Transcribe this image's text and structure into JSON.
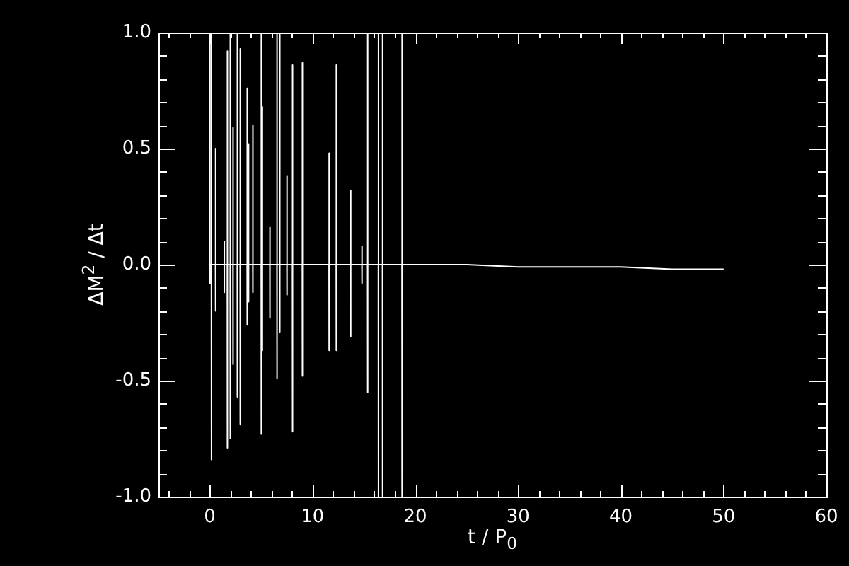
{
  "chart_data": {
    "type": "line",
    "xlabel": "t / P$_{0}$",
    "ylabel": "ΔM$^{2}$ / Δt",
    "xlim": [
      -5,
      60
    ],
    "xticks": [
      {
        "value": -4,
        "label": null
      },
      {
        "value": -2,
        "label": null
      },
      0,
      {
        "value": 2,
        "label": null
      },
      {
        "value": 4,
        "label": null
      },
      {
        "value": 6,
        "label": null
      },
      {
        "value": 8,
        "label": null
      },
      10,
      {
        "value": 12,
        "label": null
      },
      {
        "value": 14,
        "label": null
      },
      {
        "value": 16,
        "label": null
      },
      {
        "value": 18,
        "label": null
      },
      20,
      {
        "value": 22,
        "label": null
      },
      {
        "value": 24,
        "label": null
      },
      {
        "value": 26,
        "label": null
      },
      {
        "value": 28,
        "label": null
      },
      30,
      {
        "value": 32,
        "label": null
      },
      {
        "value": 34,
        "label": null
      },
      {
        "value": 36,
        "label": null
      },
      {
        "value": 38,
        "label": null
      },
      40,
      {
        "value": 42,
        "label": null
      },
      {
        "value": 44,
        "label": null
      },
      {
        "value": 46,
        "label": null
      },
      {
        "value": 48,
        "label": null
      },
      50,
      {
        "value": 52,
        "label": null
      },
      {
        "value": 54,
        "label": null
      },
      {
        "value": 56,
        "label": null
      },
      {
        "value": 58,
        "label": null
      },
      60
    ],
    "ylim": [
      -1,
      1
    ],
    "yticks": [
      {
        "value": -1,
        "label": "-1.0"
      },
      {
        "value": -0.9,
        "label": null
      },
      {
        "value": -0.8,
        "label": null
      },
      {
        "value": -0.7,
        "label": null
      },
      {
        "value": -0.6,
        "label": null
      },
      {
        "value": -0.5,
        "label": "-0.5"
      },
      {
        "value": -0.4,
        "label": null
      },
      {
        "value": -0.3,
        "label": null
      },
      {
        "value": -0.2,
        "label": null
      },
      {
        "value": -0.1,
        "label": null
      },
      {
        "value": 0,
        "label": "0.0"
      },
      {
        "value": 0.1,
        "label": null
      },
      {
        "value": 0.2,
        "label": null
      },
      {
        "value": 0.3,
        "label": null
      },
      {
        "value": 0.4,
        "label": null
      },
      {
        "value": 0.5,
        "label": "0.5"
      },
      {
        "value": 0.6,
        "label": null
      },
      {
        "value": 0.7,
        "label": null
      },
      {
        "value": 0.8,
        "label": null
      },
      {
        "value": 0.9,
        "label": null
      },
      {
        "value": 1,
        "label": "1.0"
      }
    ],
    "marker": "none",
    "line_style": "solid",
    "series": [
      {
        "color": "#ffffff",
        "x": [
          0,
          0,
          0.01,
          0.02,
          0.15,
          0.15,
          0.16,
          0.17,
          0.55,
          0.55,
          0.56,
          0.57,
          1.4,
          1.4,
          1.41,
          1.42,
          1.7,
          1.7,
          1.71,
          1.72,
          1.98,
          1.98,
          1.99,
          2.0,
          2.25,
          2.25,
          2.26,
          2.27,
          2.67,
          2.67,
          2.68,
          2.69,
          2.95,
          2.95,
          2.96,
          2.97,
          3.63,
          3.63,
          3.64,
          3.65,
          3.76,
          3.76,
          3.77,
          3.78,
          4.18,
          4.18,
          4.19,
          4.2,
          5.0,
          5.0,
          5.01,
          5.02,
          5.1,
          5.1,
          5.11,
          5.12,
          5.84,
          5.84,
          5.85,
          5.86,
          6.53,
          6.53,
          6.54,
          6.55,
          6.8,
          6.8,
          6.81,
          6.82,
          7.5,
          7.5,
          7.51,
          7.52,
          8.04,
          8.04,
          8.05,
          8.06,
          9.0,
          9.0,
          9.01,
          9.02,
          11.6,
          11.6,
          11.61,
          11.62,
          12.3,
          12.3,
          12.31,
          12.32,
          13.7,
          13.7,
          13.71,
          13.72,
          14.8,
          14.8,
          14.81,
          14.82,
          15.35,
          15.35,
          15.36,
          15.37,
          16.4,
          16.4,
          16.41,
          16.42,
          16.8,
          16.8,
          16.81,
          16.82,
          18.7,
          18.7,
          18.71,
          18.72,
          25,
          30,
          35,
          40,
          45,
          50
        ],
        "values": [
          0,
          1.0,
          -0.08,
          0,
          0,
          1.0,
          -0.84,
          0,
          0,
          0.5,
          -0.2,
          0,
          0,
          0.1,
          -0.12,
          0,
          0,
          0.92,
          -0.79,
          0,
          0,
          1.0,
          -0.75,
          0,
          0,
          0.59,
          -0.43,
          0,
          0,
          1.0,
          -0.57,
          0,
          0,
          0.93,
          -0.69,
          0,
          0,
          0.76,
          -0.26,
          0,
          0,
          0.52,
          -0.16,
          0,
          0,
          0.6,
          -0.12,
          0,
          0,
          1.0,
          -0.73,
          0,
          0,
          0.68,
          -0.37,
          0,
          0,
          0.16,
          -0.23,
          0,
          0,
          1.0,
          -0.49,
          0,
          0,
          1.0,
          -0.29,
          0,
          0,
          0.38,
          -0.13,
          0,
          0,
          0.86,
          -0.72,
          0,
          0,
          0.87,
          -0.48,
          0,
          0,
          0.48,
          -0.37,
          0,
          0,
          0.86,
          -0.37,
          0,
          0,
          0.32,
          -0.31,
          0,
          0,
          0.08,
          -0.08,
          0,
          0,
          1.0,
          -0.55,
          0,
          0,
          1.0,
          -1.0,
          0,
          0,
          1.0,
          -1.0,
          0,
          0,
          1.0,
          -1.0,
          0,
          0,
          -0.01,
          -0.01,
          -0.01,
          -0.02,
          -0.02
        ]
      }
    ]
  }
}
